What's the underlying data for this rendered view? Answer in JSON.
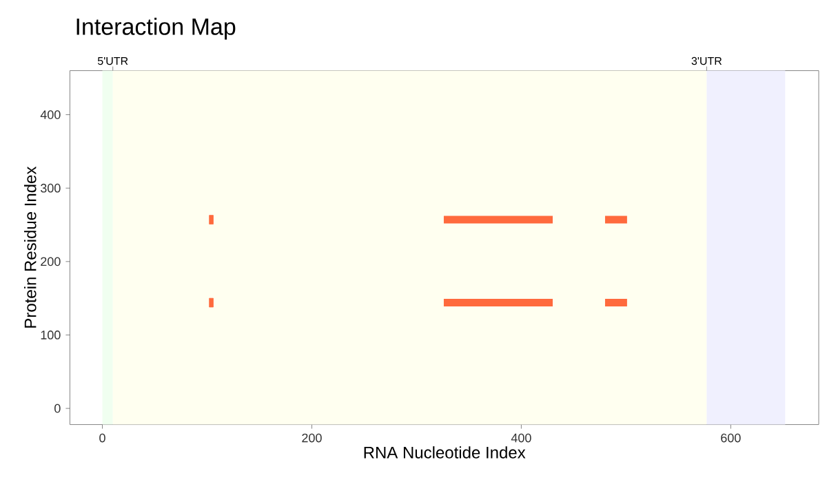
{
  "chart_data": {
    "type": "line",
    "title": "Interaction Map",
    "xlabel": "RNA Nucleotide Index",
    "ylabel": "Protein Residue Index",
    "xlim": [
      -31,
      684
    ],
    "ylim": [
      -22,
      460
    ],
    "xticks": [
      0,
      200,
      400,
      600
    ],
    "yticks": [
      0,
      100,
      200,
      300,
      400
    ],
    "bands": [
      {
        "axis": "x",
        "from": 0,
        "to": 10,
        "color": "#f0fff0",
        "label": "5'UTR"
      },
      {
        "axis": "x",
        "from": 10,
        "to": 577,
        "color": "#fffff0"
      },
      {
        "axis": "x",
        "from": 577,
        "to": 652,
        "color": "#f0f0fe",
        "label": "3'UTR"
      }
    ],
    "grid": false,
    "marker": "none",
    "line_style": "solid",
    "series": [
      {
        "color": "#ff6a3d",
        "x": [
          326,
          430,
          450,
          480,
          501
        ],
        "values": [
          257,
          257,
          null,
          257,
          257
        ]
      },
      {
        "color": "#ff6a3d",
        "x": [
          326,
          430,
          450,
          480,
          501
        ],
        "values": [
          144,
          144,
          null,
          144,
          144
        ]
      },
      {
        "type": "scatter",
        "marker": "square",
        "color": "#ff6a3d",
        "x": [
          104,
          104
        ],
        "values": [
          257,
          144
        ]
      }
    ]
  }
}
